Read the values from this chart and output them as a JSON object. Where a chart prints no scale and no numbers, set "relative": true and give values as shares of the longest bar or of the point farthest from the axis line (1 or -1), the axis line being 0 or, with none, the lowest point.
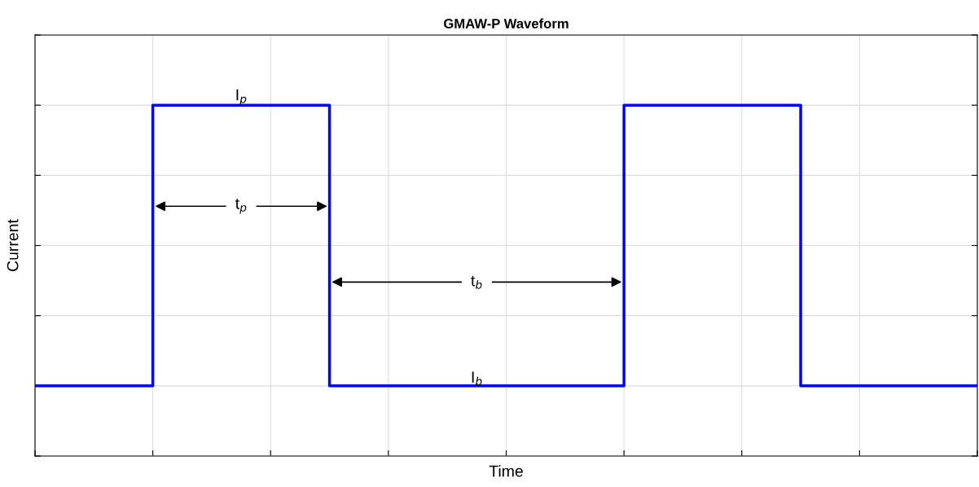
{
  "chart_data": {
    "type": "step",
    "title": "GMAW-P Waveform",
    "xlabel": "Time",
    "ylabel": "Current",
    "relative": true,
    "grid": true,
    "tick_labels": false,
    "categories": [
      null,
      null,
      null,
      null,
      null,
      null,
      null,
      null,
      null,
      null,
      null,
      null,
      null,
      null,
      null,
      null,
      null
    ],
    "series": [
      {
        "color": "#0000ff",
        "values": [
          0.2,
          0.2,
          1,
          1,
          1,
          0.2,
          0.2,
          0.2,
          0.2,
          0.2,
          1,
          1,
          1,
          0.2,
          0.2,
          0.2,
          0.2
        ]
      }
    ],
    "annotations": [
      "I$_{p}$",
      "t$_{p}$",
      "t$_{b}$",
      "I$_{b}$"
    ]
  }
}
